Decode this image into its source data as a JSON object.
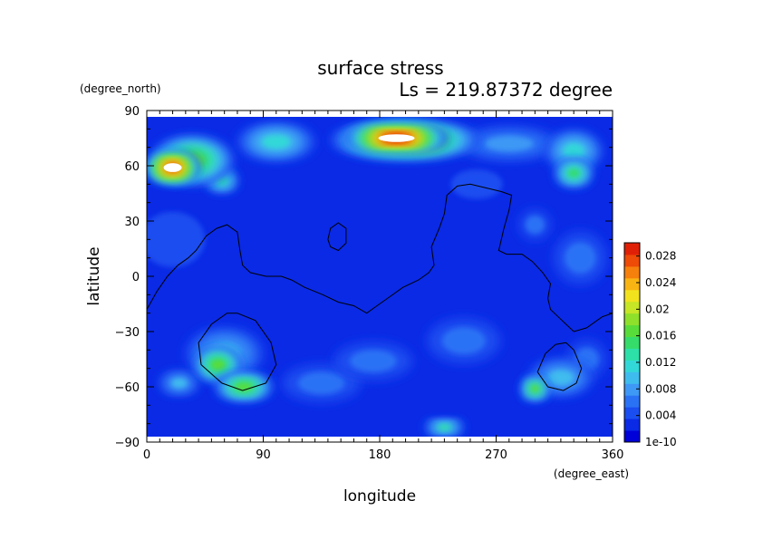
{
  "chart_data": {
    "type": "heatmap",
    "title": "surface stress",
    "subtitle": "Ls = 219.87372 degree",
    "xlabel": "longitude",
    "ylabel": "latitude",
    "x_unit": "(degree_east)",
    "y_unit": "(degree_north)",
    "xlim": [
      0,
      360
    ],
    "ylim": [
      -90,
      90
    ],
    "x_ticks": [
      "0",
      "90",
      "180",
      "270",
      "360"
    ],
    "y_ticks": [
      "90",
      "60",
      "30",
      "0",
      "−30",
      "−60",
      "−90"
    ],
    "x_tick_values": [
      0,
      90,
      180,
      270,
      360
    ],
    "y_tick_values": [
      90,
      60,
      30,
      0,
      -30,
      -60,
      -90
    ],
    "colorbar": {
      "min": 1e-10,
      "max": 0.03,
      "labels": [
        "0.028",
        "0.024",
        "0.02",
        "0.016",
        "0.012",
        "0.008",
        "0.004",
        "1e-10"
      ],
      "label_values": [
        0.028,
        0.024,
        0.02,
        0.016,
        0.012,
        0.008,
        0.004,
        0
      ],
      "colors": [
        "#0000d8",
        "#0a2ae6",
        "#1a4ef0",
        "#2a72f5",
        "#3e98f5",
        "#3fbcee",
        "#32d8d8",
        "#2de0a8",
        "#35dc6a",
        "#58dc3a",
        "#8ee02a",
        "#c6e626",
        "#f2e21e",
        "#f8b412",
        "#f6800c",
        "#ee4a08",
        "#e02006"
      ]
    },
    "hotspots": [
      {
        "lon": 193,
        "lat": 75,
        "value": 0.029,
        "rx": 40,
        "ry": 7
      },
      {
        "lon": 20,
        "lat": 59,
        "value": 0.027,
        "rx": 20,
        "ry": 8
      },
      {
        "lon": 200,
        "lat": 74,
        "value": 0.022,
        "rx": 58,
        "ry": 10
      },
      {
        "lon": 35,
        "lat": 63,
        "value": 0.017,
        "rx": 32,
        "ry": 13
      },
      {
        "lon": 100,
        "lat": 73,
        "value": 0.011,
        "rx": 30,
        "ry": 10
      },
      {
        "lon": 280,
        "lat": 72,
        "value": 0.008,
        "rx": 40,
        "ry": 9
      },
      {
        "lon": 330,
        "lat": 68,
        "value": 0.012,
        "rx": 22,
        "ry": 11
      },
      {
        "lon": 330,
        "lat": 56,
        "value": 0.015,
        "rx": 14,
        "ry": 7
      },
      {
        "lon": 58,
        "lat": 52,
        "value": 0.014,
        "rx": 12,
        "ry": 6
      },
      {
        "lon": 55,
        "lat": -48,
        "value": 0.016,
        "rx": 18,
        "ry": 9
      },
      {
        "lon": 75,
        "lat": -60,
        "value": 0.017,
        "rx": 22,
        "ry": 7
      },
      {
        "lon": 60,
        "lat": -42,
        "value": 0.009,
        "rx": 30,
        "ry": 14
      },
      {
        "lon": 25,
        "lat": -58,
        "value": 0.009,
        "rx": 15,
        "ry": 6
      },
      {
        "lon": 175,
        "lat": -46,
        "value": 0.007,
        "rx": 30,
        "ry": 10
      },
      {
        "lon": 300,
        "lat": -61,
        "value": 0.016,
        "rx": 10,
        "ry": 6
      },
      {
        "lon": 320,
        "lat": -55,
        "value": 0.009,
        "rx": 25,
        "ry": 10
      },
      {
        "lon": 230,
        "lat": -82,
        "value": 0.013,
        "rx": 15,
        "ry": 4
      },
      {
        "lon": 135,
        "lat": -58,
        "value": 0.006,
        "rx": 30,
        "ry": 10
      },
      {
        "lon": 335,
        "lat": 10,
        "value": 0.007,
        "rx": 20,
        "ry": 14
      },
      {
        "lon": 300,
        "lat": 28,
        "value": 0.006,
        "rx": 12,
        "ry": 8
      },
      {
        "lon": 255,
        "lat": 50,
        "value": 0.005,
        "rx": 20,
        "ry": 8
      },
      {
        "lon": 20,
        "lat": 20,
        "value": 0.005,
        "rx": 25,
        "ry": 15
      },
      {
        "lon": 245,
        "lat": -35,
        "value": 0.006,
        "rx": 28,
        "ry": 12
      },
      {
        "lon": 340,
        "lat": -45,
        "value": 0.006,
        "rx": 15,
        "ry": 10
      }
    ],
    "contours": [
      {
        "name": "continent-outline",
        "points": [
          [
            0,
            -18
          ],
          [
            8,
            -8
          ],
          [
            16,
            0
          ],
          [
            24,
            6
          ],
          [
            32,
            10
          ],
          [
            38,
            14
          ],
          [
            46,
            22
          ],
          [
            54,
            26
          ],
          [
            62,
            28
          ],
          [
            70,
            24
          ],
          [
            72,
            14
          ],
          [
            74,
            6
          ],
          [
            80,
            2
          ],
          [
            92,
            0
          ],
          [
            104,
            0
          ],
          [
            112,
            -2
          ],
          [
            122,
            -6
          ],
          [
            136,
            -10
          ],
          [
            148,
            -14
          ],
          [
            160,
            -16
          ],
          [
            170,
            -20
          ],
          [
            178,
            -16
          ],
          [
            186,
            -12
          ],
          [
            198,
            -6
          ],
          [
            210,
            -2
          ],
          [
            218,
            2
          ],
          [
            222,
            6
          ],
          [
            220,
            16
          ],
          [
            226,
            26
          ],
          [
            230,
            34
          ],
          [
            232,
            44
          ],
          [
            240,
            49
          ],
          [
            250,
            50
          ],
          [
            262,
            48
          ],
          [
            274,
            46
          ],
          [
            282,
            44
          ],
          [
            280,
            36
          ],
          [
            276,
            26
          ],
          [
            272,
            14
          ],
          [
            278,
            12
          ],
          [
            290,
            12
          ],
          [
            298,
            8
          ],
          [
            306,
            2
          ],
          [
            312,
            -4
          ],
          [
            310,
            -12
          ],
          [
            312,
            -18
          ],
          [
            318,
            -22
          ],
          [
            324,
            -26
          ],
          [
            330,
            -30
          ],
          [
            340,
            -28
          ],
          [
            352,
            -22
          ],
          [
            360,
            -20
          ]
        ]
      },
      {
        "name": "small-island",
        "points": [
          [
            142,
            16
          ],
          [
            148,
            14
          ],
          [
            154,
            18
          ],
          [
            154,
            26
          ],
          [
            148,
            29
          ],
          [
            142,
            26
          ],
          [
            140,
            20
          ],
          [
            142,
            16
          ]
        ]
      },
      {
        "name": "southern-loop-left",
        "points": [
          [
            70,
            -20
          ],
          [
            84,
            -24
          ],
          [
            96,
            -36
          ],
          [
            100,
            -48
          ],
          [
            92,
            -58
          ],
          [
            74,
            -62
          ],
          [
            58,
            -58
          ],
          [
            42,
            -48
          ],
          [
            40,
            -36
          ],
          [
            50,
            -26
          ],
          [
            62,
            -20
          ],
          [
            70,
            -20
          ]
        ]
      },
      {
        "name": "southern-loop-right",
        "points": [
          [
            324,
            -36
          ],
          [
            330,
            -40
          ],
          [
            336,
            -50
          ],
          [
            332,
            -58
          ],
          [
            322,
            -62
          ],
          [
            310,
            -60
          ],
          [
            302,
            -52
          ],
          [
            308,
            -42
          ],
          [
            316,
            -37
          ],
          [
            324,
            -36
          ]
        ]
      }
    ]
  }
}
